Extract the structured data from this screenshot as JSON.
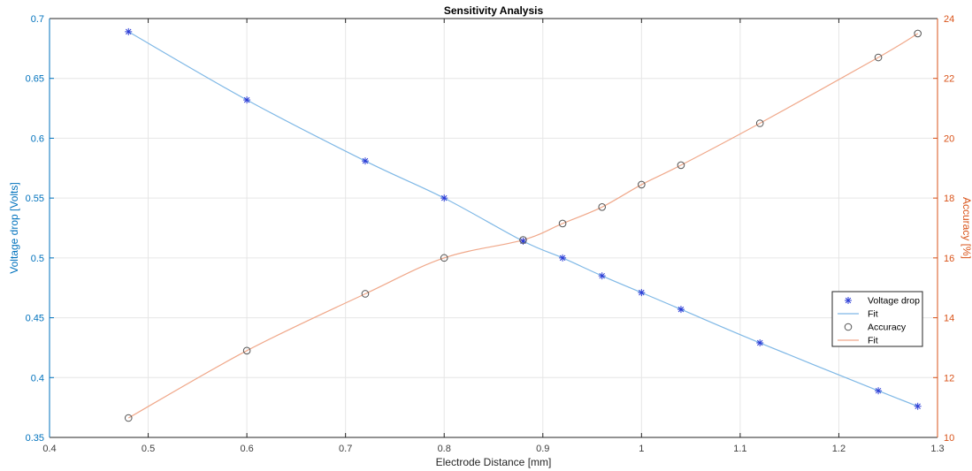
{
  "chart_data": {
    "type": "line",
    "title": "Sensitivity Analysis",
    "xlabel": "Electrode Distance [mm]",
    "ylabel": "Voltage drop [Volts]",
    "y2label": "Accuracy [%]",
    "xlim": [
      0.4,
      1.3
    ],
    "ylim": [
      0.35,
      0.7
    ],
    "y2lim": [
      10,
      24
    ],
    "xticks": [
      "0.4",
      "0.5",
      "0.6",
      "0.7",
      "0.8",
      "0.9",
      "1",
      "1.1",
      "1.2",
      "1.3"
    ],
    "yticks": [
      "0.35",
      "0.4",
      "0.45",
      "0.5",
      "0.55",
      "0.6",
      "0.65",
      "0.7"
    ],
    "y2ticks": [
      "10",
      "12",
      "14",
      "16",
      "18",
      "20",
      "22",
      "24"
    ],
    "grid": true,
    "legend_position": "right",
    "colors": {
      "left_axis": "#0072bd",
      "right_axis": "#d95319",
      "voltage_marker": "#2b3cd6",
      "voltage_fit": "#7fb8e6",
      "accuracy_marker": "#555555",
      "accuracy_fit": "#f0a88a",
      "grid": "#e6e6e6",
      "axis_box": "#262626"
    },
    "series": [
      {
        "name": "Voltage drop",
        "axis": "left",
        "marker": "asterisk",
        "x": [
          0.48,
          0.6,
          0.72,
          0.8,
          0.88,
          0.92,
          0.96,
          1.0,
          1.04,
          1.12,
          1.24,
          1.28
        ],
        "values": [
          0.689,
          0.632,
          0.581,
          0.55,
          0.514,
          0.5,
          0.485,
          0.471,
          0.457,
          0.429,
          0.389,
          0.376
        ]
      },
      {
        "name": "Fit",
        "axis": "left",
        "style": "line",
        "x": [
          0.48,
          0.6,
          0.72,
          0.8,
          0.88,
          0.92,
          0.96,
          1.0,
          1.04,
          1.12,
          1.24,
          1.28
        ],
        "values": [
          0.689,
          0.632,
          0.581,
          0.55,
          0.514,
          0.5,
          0.485,
          0.471,
          0.457,
          0.429,
          0.389,
          0.376
        ]
      },
      {
        "name": "Accuracy",
        "axis": "right",
        "marker": "circle",
        "x": [
          0.48,
          0.6,
          0.72,
          0.8,
          0.88,
          0.92,
          0.96,
          1.0,
          1.04,
          1.12,
          1.24,
          1.28
        ],
        "values": [
          10.65,
          12.9,
          14.8,
          16.0,
          16.6,
          17.15,
          17.7,
          18.45,
          19.1,
          20.5,
          22.7,
          23.5
        ]
      },
      {
        "name": "Fit",
        "axis": "right",
        "style": "line",
        "x": [
          0.48,
          0.6,
          0.72,
          0.8,
          0.88,
          0.92,
          0.96,
          1.0,
          1.04,
          1.12,
          1.24,
          1.28
        ],
        "values": [
          10.65,
          12.9,
          14.8,
          16.0,
          16.6,
          17.15,
          17.7,
          18.45,
          19.1,
          20.5,
          22.7,
          23.5
        ]
      }
    ]
  }
}
